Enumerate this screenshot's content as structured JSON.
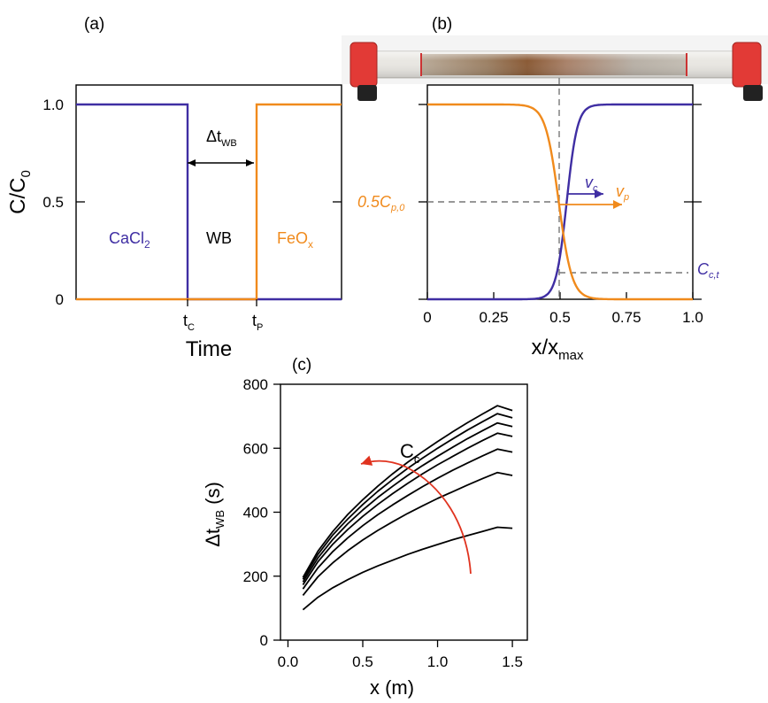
{
  "colors": {
    "calcium": "#3f2ea3",
    "particle": "#f08a1c",
    "arrow": "#e0331f",
    "dashed": "#777777",
    "ink": "#000000"
  },
  "chart_data": [
    {
      "id": "a",
      "panel_label": "(a)",
      "type": "line",
      "xlabel": "Time",
      "ylabel_main": "C/C",
      "ylabel_sub": "0",
      "ylim": [
        0,
        1.1
      ],
      "yticks": [
        {
          "value": 0,
          "label": "0"
        },
        {
          "value": 0.5,
          "label": "0.5"
        },
        {
          "value": 1,
          "label": "1.0"
        }
      ],
      "x_markers": [
        {
          "x": 0.42,
          "main": "t",
          "sub": "C"
        },
        {
          "x": 0.68,
          "main": "t",
          "sub": "P"
        }
      ],
      "series": [
        {
          "key": "calcium",
          "x": [
            0,
            0.42,
            0.42,
            1
          ],
          "y": [
            1,
            1,
            0,
            0
          ]
        },
        {
          "key": "particle",
          "x": [
            0,
            0.68,
            0.68,
            1
          ],
          "y": [
            0,
            0,
            1,
            1
          ]
        }
      ],
      "annotations": {
        "cacl2": {
          "main": "CaCl",
          "sub": "2"
        },
        "wb": "WB",
        "feox": {
          "main": "FeO",
          "sub": "x"
        },
        "gap": {
          "main": "Δt",
          "sub": "WB"
        }
      }
    },
    {
      "id": "b",
      "panel_label": "(b)",
      "type": "line",
      "xlabel_main": "x/x",
      "xlabel_sub": "max",
      "xlim": [
        0,
        1
      ],
      "ylim": [
        0,
        1.1
      ],
      "xticks": [
        {
          "value": 0,
          "label": "0"
        },
        {
          "value": 0.25,
          "label": "0.25"
        },
        {
          "value": 0.5,
          "label": "0.5"
        },
        {
          "value": 0.75,
          "label": "0.75"
        },
        {
          "value": 1,
          "label": "1.0"
        }
      ],
      "yticks": [
        0,
        0.5,
        1
      ],
      "series": [
        {
          "key": "calcium",
          "shape": "rising sigmoid",
          "center": 0.525,
          "width": 0.02
        },
        {
          "key": "particle",
          "shape": "falling sigmoid",
          "center": 0.495,
          "width": 0.025
        }
      ],
      "annotations": {
        "half_conc": {
          "main": "0.5C",
          "sub": "p,0"
        },
        "c_ct": {
          "main": "C",
          "sub": "c,t"
        },
        "v_c": {
          "main": "v",
          "sub": "c"
        },
        "v_p": {
          "main": "v",
          "sub": "p"
        }
      },
      "ref_lines": {
        "vertical_x": 0.5,
        "horizontal_y_half": 0.5,
        "horizontal_y_cct": 0.13
      }
    },
    {
      "id": "c",
      "panel_label": "(c)",
      "type": "line",
      "xlabel": "x (m)",
      "ylabel_main": "Δt",
      "ylabel_sub": "WB",
      "ylabel_unit": " (s)",
      "xlim": [
        -0.05,
        1.6
      ],
      "ylim": [
        0,
        800
      ],
      "xticks": [
        {
          "value": 0,
          "label": "0.0"
        },
        {
          "value": 0.5,
          "label": "0.5"
        },
        {
          "value": 1,
          "label": "1.0"
        },
        {
          "value": 1.5,
          "label": "1.5"
        }
      ],
      "yticks": [
        {
          "value": 0,
          "label": "0"
        },
        {
          "value": 200,
          "label": "200"
        },
        {
          "value": 400,
          "label": "400"
        },
        {
          "value": 600,
          "label": "600"
        },
        {
          "value": 800,
          "label": "800"
        }
      ],
      "x": [
        0.1,
        0.2,
        0.3,
        0.4,
        0.5,
        0.6,
        0.7,
        0.8,
        0.9,
        1.0,
        1.1,
        1.2,
        1.3,
        1.4,
        1.5
      ],
      "series": [
        {
          "values": [
            95,
            134,
            164,
            189,
            212,
            232,
            250,
            268,
            284,
            299,
            314,
            327,
            340,
            353,
            350
          ]
        },
        {
          "values": [
            140,
            198,
            242,
            280,
            313,
            343,
            370,
            396,
            420,
            443,
            464,
            485,
            505,
            524,
            515
          ]
        },
        {
          "values": [
            160,
            226,
            277,
            320,
            358,
            392,
            423,
            452,
            480,
            506,
            531,
            554,
            576,
            597,
            588
          ]
        },
        {
          "values": [
            173,
            245,
            300,
            346,
            387,
            424,
            458,
            490,
            520,
            548,
            574,
            600,
            624,
            647,
            637
          ]
        },
        {
          "values": [
            182,
            257,
            315,
            364,
            407,
            446,
            481,
            515,
            546,
            575,
            603,
            630,
            655,
            679,
            668
          ]
        },
        {
          "values": [
            190,
            268,
            329,
            379,
            424,
            465,
            502,
            537,
            569,
            600,
            629,
            657,
            683,
            708,
            695
          ]
        },
        {
          "values": [
            196,
            278,
            340,
            393,
            439,
            481,
            520,
            556,
            589,
            621,
            651,
            680,
            707,
            733,
            718
          ]
        }
      ],
      "arrow_label": {
        "main": "C",
        "sub": "c"
      }
    }
  ]
}
